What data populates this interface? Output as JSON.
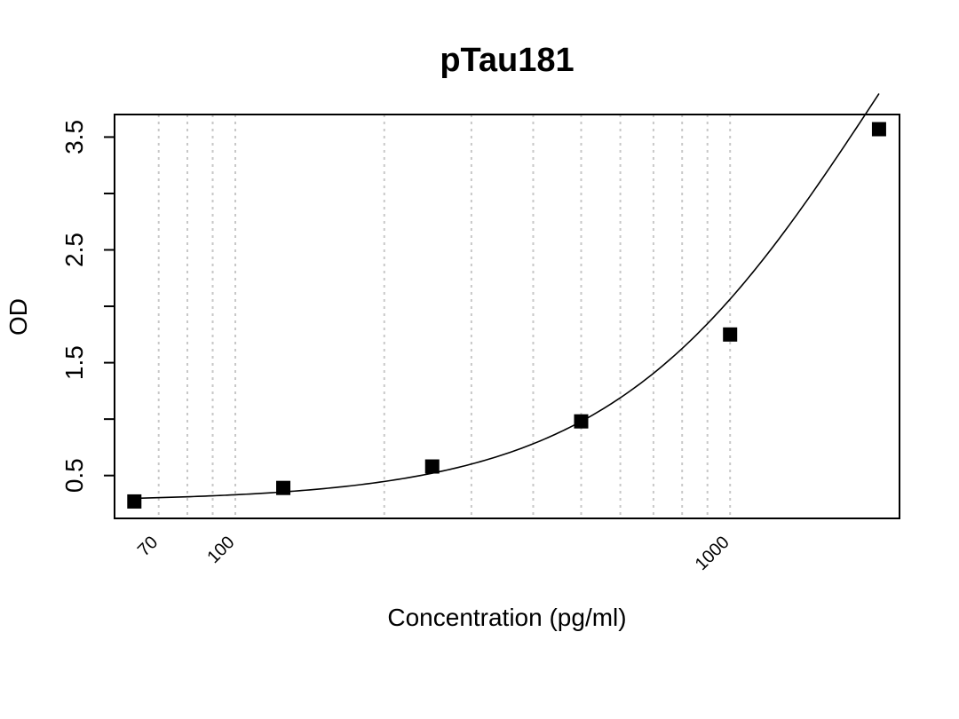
{
  "chart_data": {
    "type": "scatter",
    "title": "pTau181",
    "xlabel": "Concentration (pg/ml)",
    "ylabel": "OD",
    "x_scale": "log",
    "xlim": [
      57,
      2200
    ],
    "ylim": [
      0.12,
      3.7
    ],
    "yticks": [
      0.5,
      1,
      1.5,
      2,
      2.5,
      3,
      3.5
    ],
    "ytick_labels": [
      "0.5",
      "",
      "1.5",
      "",
      "2.5",
      "",
      "3.5"
    ],
    "x_gridlines": [
      70,
      80,
      90,
      100,
      200,
      300,
      400,
      500,
      600,
      700,
      800,
      900,
      1000
    ],
    "x_tick_labels": [
      {
        "value": 70,
        "label": "70"
      },
      {
        "value": 100,
        "label": "100"
      },
      {
        "value": 1000,
        "label": "1000"
      }
    ],
    "grid": true,
    "series": [
      {
        "x": [
          62.5,
          125,
          250,
          500,
          1000,
          2000
        ],
        "y": [
          0.27,
          0.39,
          0.58,
          0.98,
          1.75,
          3.57
        ],
        "marker": "square",
        "color": "#000000"
      }
    ],
    "fit_curve": {
      "type": "4PL",
      "a": 0.27,
      "b": 1.6,
      "c": 2000,
      "d": 7.5
    }
  }
}
